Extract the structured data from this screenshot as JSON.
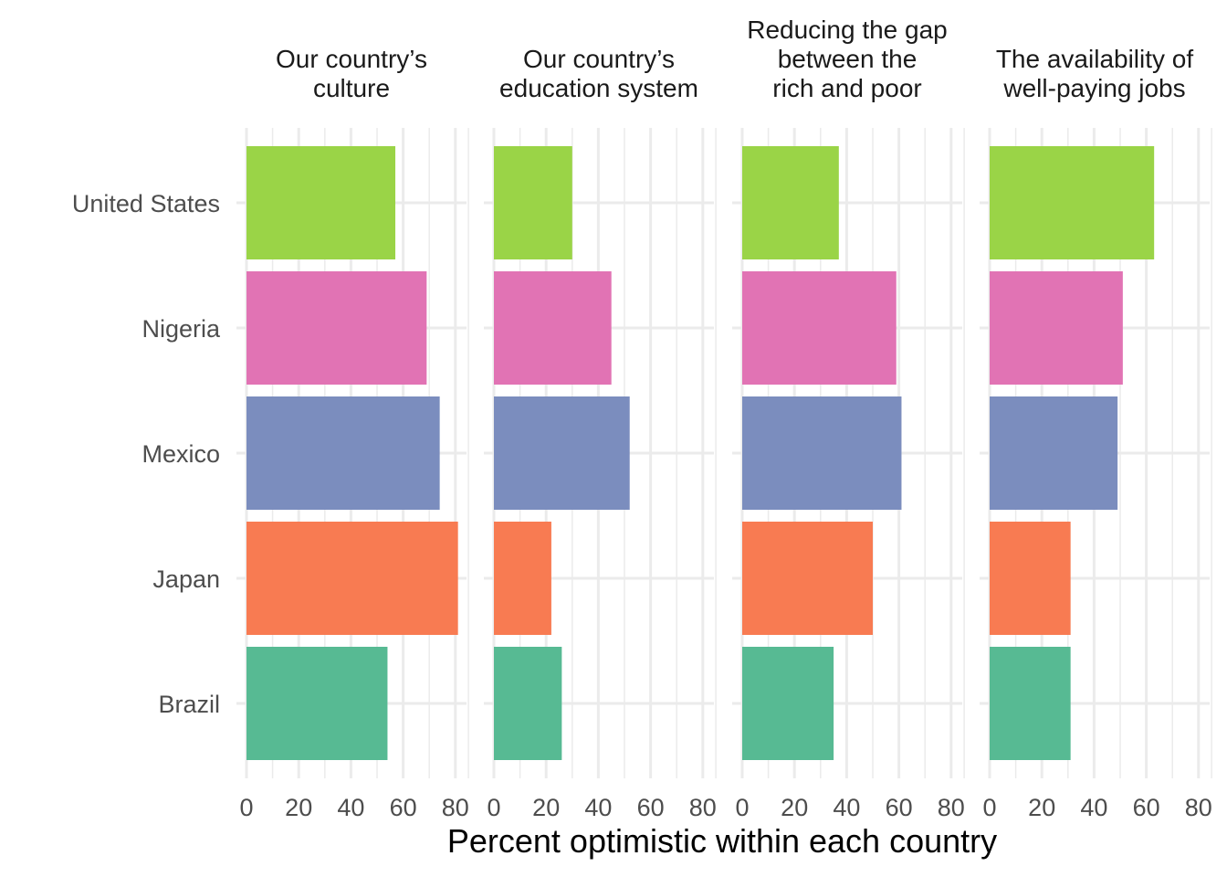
{
  "chart_data": {
    "type": "bar",
    "orientation": "horizontal",
    "categories": [
      "United States",
      "Nigeria",
      "Mexico",
      "Japan",
      "Brazil"
    ],
    "category_colors": [
      "#9ad447",
      "#e173b4",
      "#7b8dbe",
      "#f87b52",
      "#57ba93"
    ],
    "xlabel": "Percent optimistic within each country",
    "xlim": [
      0,
      85
    ],
    "xticks": [
      "0",
      "20",
      "40",
      "60",
      "80"
    ],
    "grid": true,
    "legend": "none",
    "facets": [
      {
        "title": [
          "Our country’s",
          "culture"
        ],
        "values": [
          57,
          69,
          74,
          81,
          54
        ]
      },
      {
        "title": [
          "Our country’s",
          "education system"
        ],
        "values": [
          30,
          45,
          52,
          22,
          26
        ]
      },
      {
        "title": [
          "Reducing the gap",
          "between the",
          "rich and poor"
        ],
        "values": [
          37,
          59,
          61,
          50,
          35
        ]
      },
      {
        "title": [
          "The availability of",
          "well-paying jobs"
        ],
        "values": [
          63,
          51,
          49,
          31,
          31
        ]
      }
    ]
  }
}
